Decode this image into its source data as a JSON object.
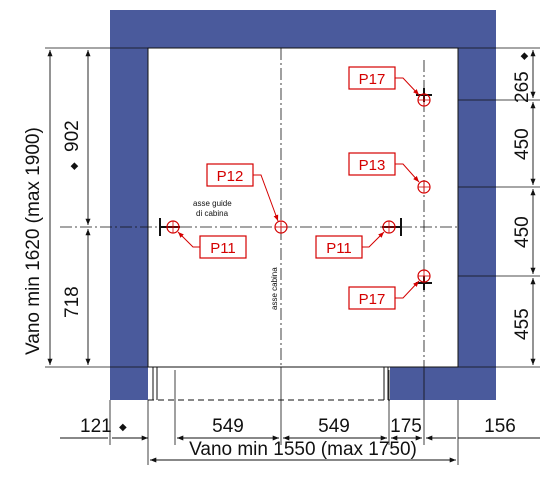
{
  "colors": {
    "wall": "#4a5a9c",
    "tag_red": "#d40000",
    "line": "#111111"
  },
  "labels": {
    "vano_width": "Vano min 1550 (max 1750)",
    "vano_depth": "Vano min 1620 (max 1900)",
    "asse_guide": [
      "asse guide",
      "di cabina"
    ],
    "asse_cabina": "asse cabina"
  },
  "dimensions": {
    "bottom": [
      "121",
      "549",
      "549",
      "175",
      "156"
    ],
    "left": [
      "902",
      "718"
    ],
    "right": [
      "265",
      "450",
      "450",
      "455"
    ]
  },
  "markers": {
    "diamond": "◆"
  },
  "tags": {
    "p11_left": "P11",
    "p12": "P12",
    "p11_right": "P11",
    "p17_top": "P17",
    "p13": "P13",
    "p17_bottom": "P17"
  }
}
